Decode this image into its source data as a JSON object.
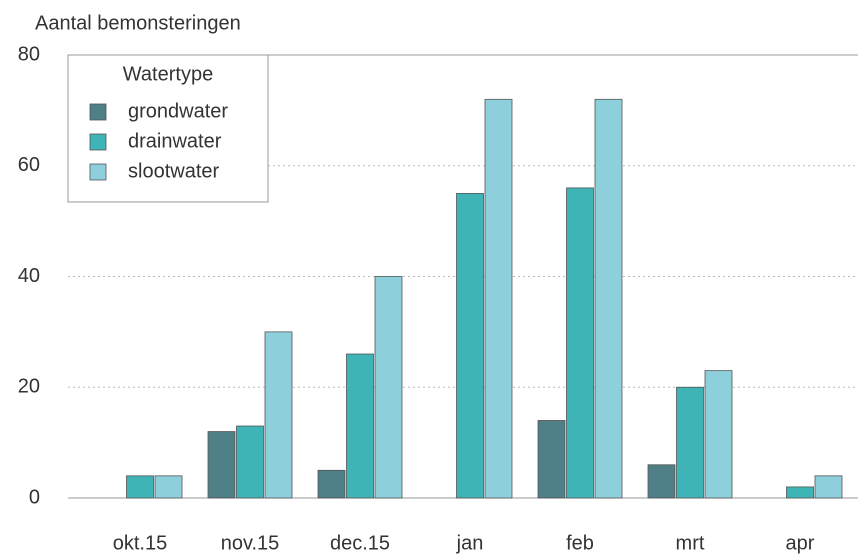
{
  "chart_data": {
    "type": "bar",
    "y_label": "Aantal bemonsteringen",
    "legend_title": "Watertype",
    "legend": "upper left",
    "categories": [
      "okt.15",
      "nov.15",
      "dec.15",
      "jan",
      "feb",
      "mrt",
      "apr"
    ],
    "series": [
      {
        "name": "grondwater",
        "color": "#4f7f87",
        "values": [
          0,
          12,
          5,
          0,
          14,
          6,
          0
        ]
      },
      {
        "name": "drainwater",
        "color": "#3fb4b7",
        "values": [
          4,
          13,
          26,
          55,
          56,
          20,
          2
        ]
      },
      {
        "name": "slootwater",
        "color": "#8dcfdb",
        "values": [
          4,
          30,
          40,
          72,
          72,
          23,
          4
        ]
      }
    ],
    "ylim": [
      0,
      80
    ],
    "yticks": [
      0,
      20,
      40,
      60,
      80
    ],
    "grid": true
  }
}
